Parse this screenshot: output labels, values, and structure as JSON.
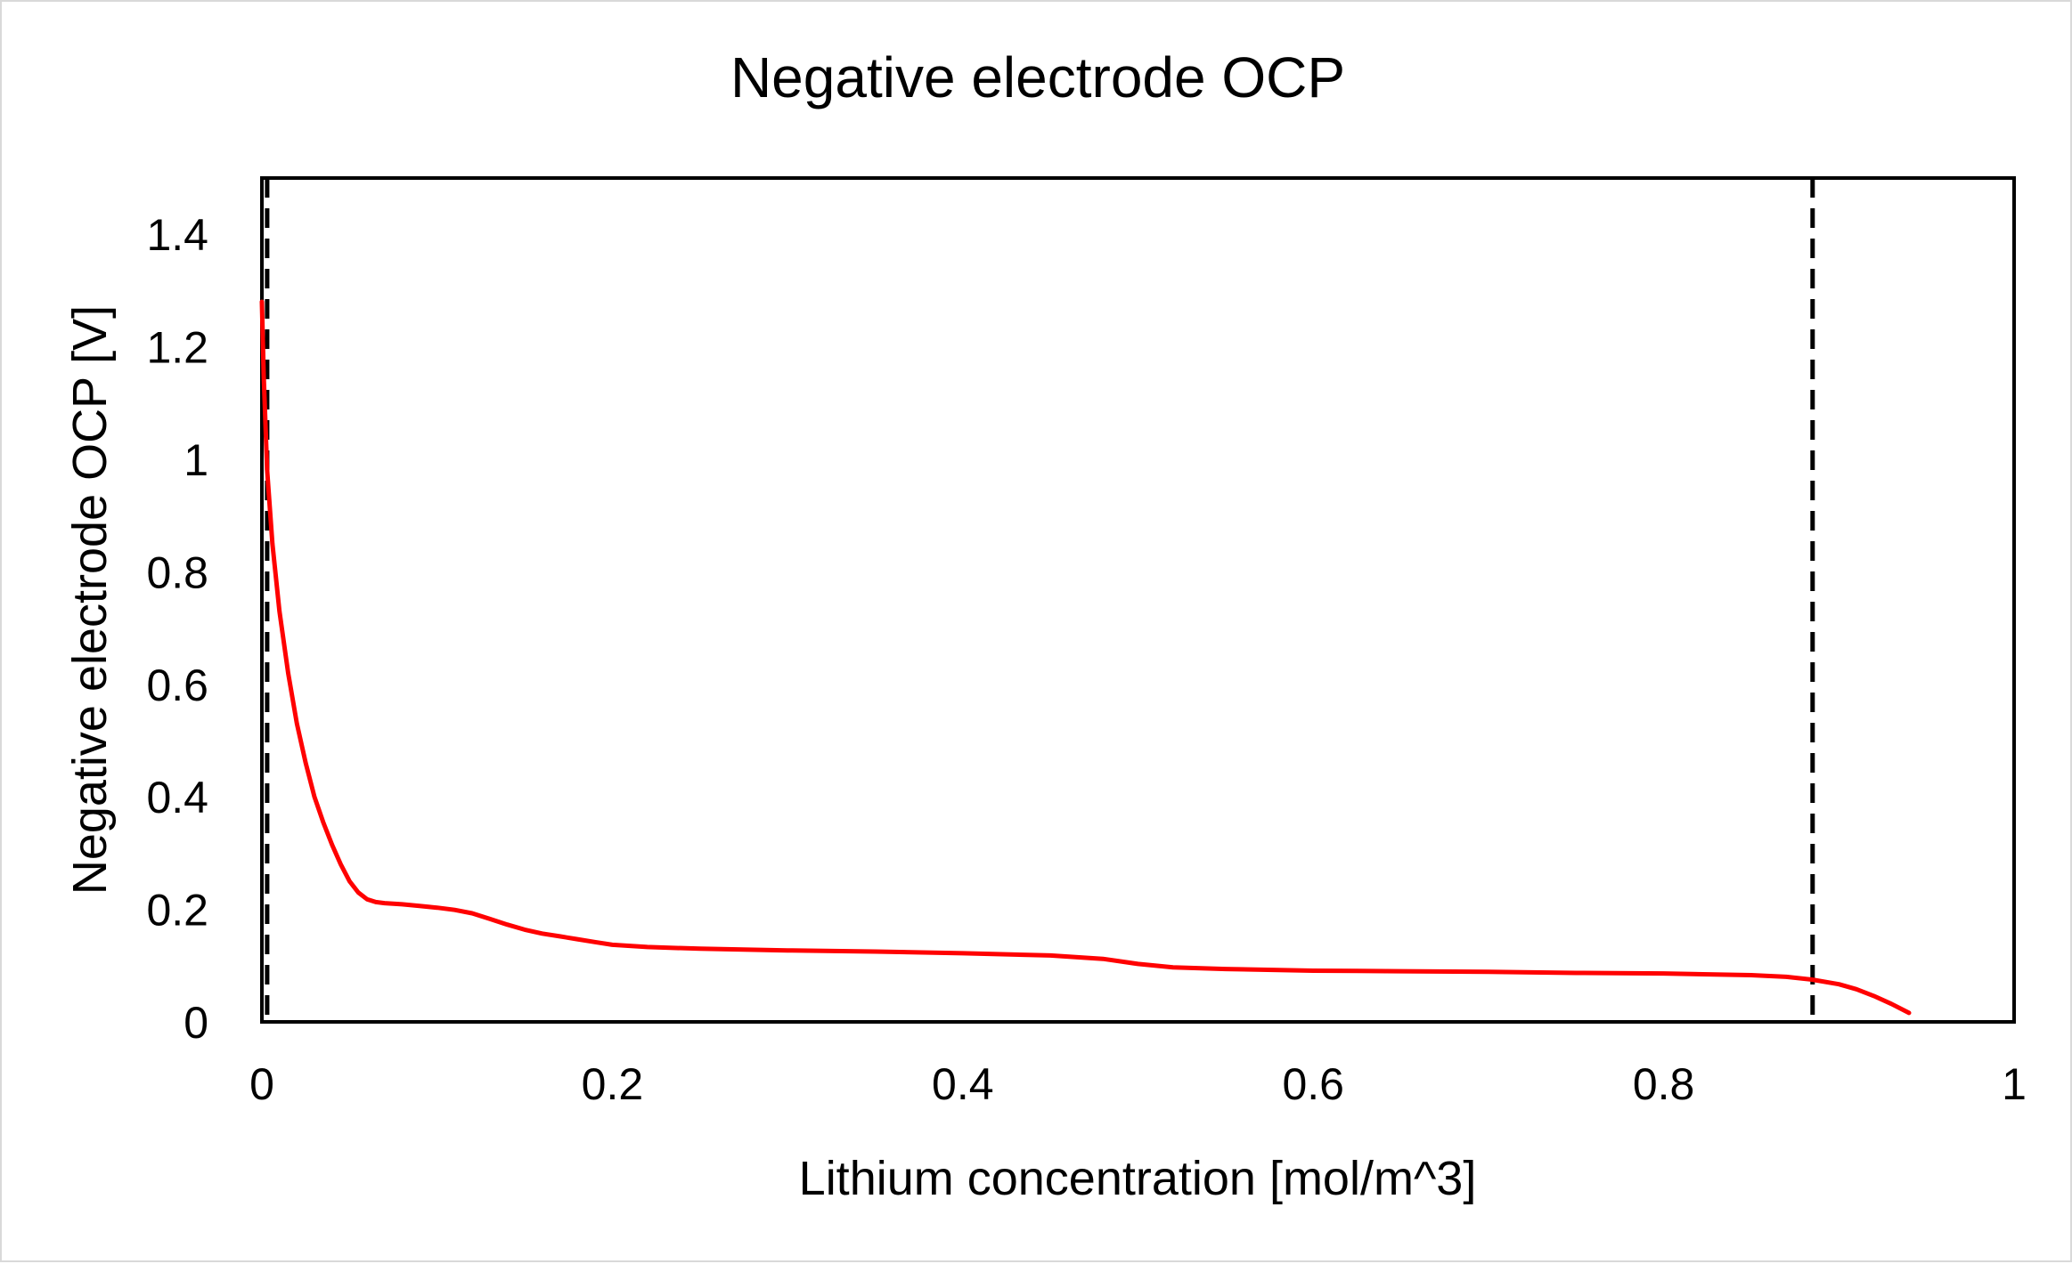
{
  "chart_data": {
    "type": "line",
    "title": "Negative electrode OCP",
    "xlabel": "Lithium concentration [mol/m^3]",
    "ylabel": "Negative electrode OCP [V]",
    "xlim": [
      0,
      1
    ],
    "ylim": [
      0,
      1.5
    ],
    "x_ticks": [
      0,
      0.2,
      0.4,
      0.6,
      0.8,
      1
    ],
    "x_tick_labels": [
      "0",
      "0.2",
      "0.4",
      "0.6",
      "0.8",
      "1"
    ],
    "y_ticks": [
      0,
      0.2,
      0.4,
      0.6,
      0.8,
      1,
      1.2,
      1.4
    ],
    "y_tick_labels": [
      "0",
      "0.2",
      "0.4",
      "0.6",
      "0.8",
      "1",
      "1.2",
      "1.4"
    ],
    "grid": false,
    "legend": "none",
    "series": [
      {
        "color": "#ff0000",
        "x": [
          0.0,
          0.001,
          0.003,
          0.006,
          0.01,
          0.015,
          0.02,
          0.025,
          0.03,
          0.035,
          0.04,
          0.045,
          0.05,
          0.055,
          0.06,
          0.065,
          0.07,
          0.08,
          0.09,
          0.1,
          0.11,
          0.12,
          0.13,
          0.14,
          0.15,
          0.16,
          0.17,
          0.18,
          0.19,
          0.2,
          0.22,
          0.25,
          0.3,
          0.35,
          0.4,
          0.45,
          0.48,
          0.5,
          0.52,
          0.55,
          0.6,
          0.65,
          0.7,
          0.75,
          0.8,
          0.85,
          0.87,
          0.885,
          0.9,
          0.91,
          0.92,
          0.93,
          0.94
        ],
        "y": [
          1.28,
          1.15,
          0.98,
          0.85,
          0.73,
          0.62,
          0.53,
          0.46,
          0.4,
          0.355,
          0.315,
          0.28,
          0.25,
          0.23,
          0.218,
          0.213,
          0.211,
          0.209,
          0.206,
          0.203,
          0.199,
          0.193,
          0.183,
          0.173,
          0.164,
          0.157,
          0.152,
          0.147,
          0.142,
          0.137,
          0.133,
          0.13,
          0.127,
          0.125,
          0.122,
          0.118,
          0.112,
          0.103,
          0.097,
          0.094,
          0.091,
          0.09,
          0.089,
          0.087,
          0.086,
          0.083,
          0.08,
          0.075,
          0.067,
          0.058,
          0.046,
          0.032,
          0.016
        ]
      }
    ],
    "vertical_lines": [
      {
        "x": 0.003,
        "style": "dashed",
        "color": "#000000"
      },
      {
        "x": 0.885,
        "style": "dashed",
        "color": "#000000"
      }
    ]
  }
}
